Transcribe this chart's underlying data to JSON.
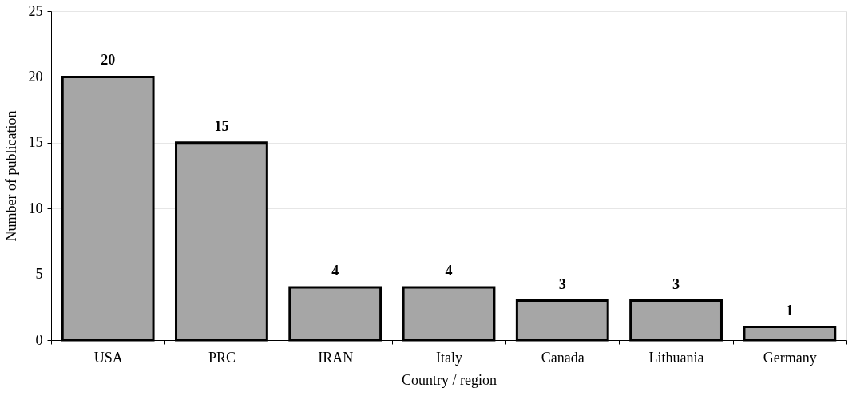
{
  "chart_data": {
    "type": "bar",
    "xlabel": "Country / region",
    "ylabel": "Number of publication",
    "categories": [
      "USA",
      "PRC",
      "IRAN",
      "Italy",
      "Canada",
      "Lithuania",
      "Germany"
    ],
    "values": [
      20,
      15,
      4,
      4,
      3,
      3,
      1
    ],
    "color": "#a6a6a6",
    "ylim": [
      0,
      25
    ],
    "yticks": [
      0,
      5,
      10,
      15,
      20,
      25
    ],
    "grid": "y",
    "data_labels": true
  }
}
